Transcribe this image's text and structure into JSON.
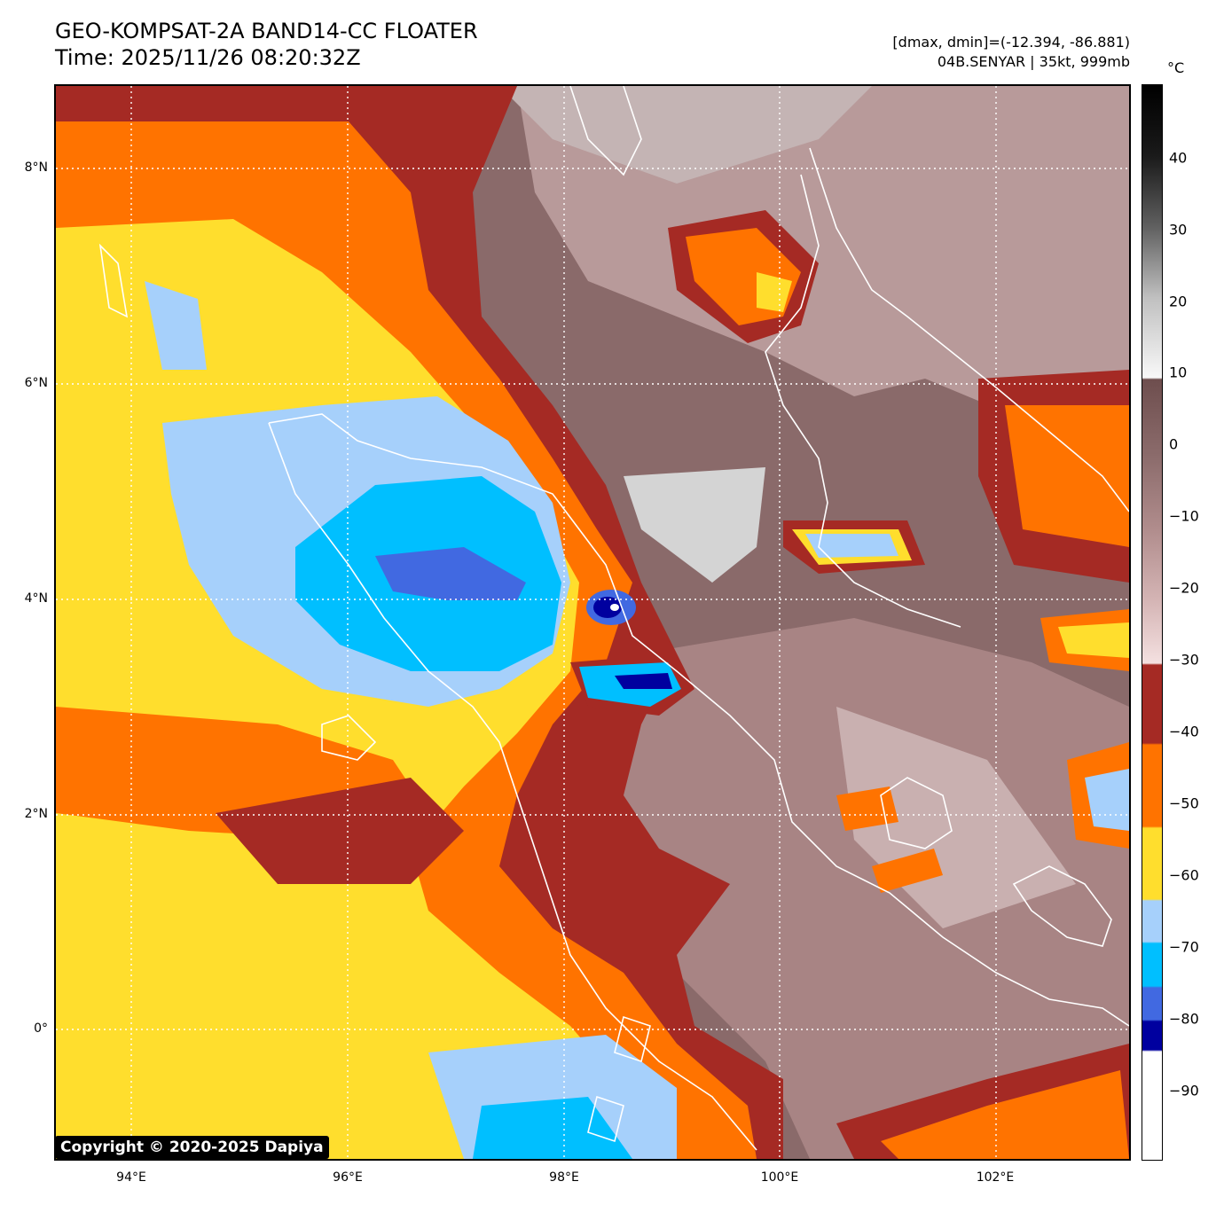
{
  "title": {
    "line1": "GEO-KOMPSAT-2A BAND14-CC FLOATER",
    "line2": "Time: 2025/11/26 08:20:32Z"
  },
  "info": {
    "line1": "[dmax, dmin]=(-12.394, -86.881)",
    "line2": "04B.SENYAR | 35kt, 999mb"
  },
  "copyright": "Copyright © 2020-2025 Dapiya",
  "lat_labels": [
    "8°N",
    "6°N",
    "4°N",
    "2°N",
    "0°"
  ],
  "lon_labels": [
    "94°E",
    "96°E",
    "98°E",
    "100°E",
    "102°E"
  ],
  "colorbar": {
    "unit": "°C",
    "ticks": [
      "40",
      "30",
      "20",
      "10",
      "0",
      "−10",
      "−20",
      "−30",
      "−40",
      "−50",
      "−60",
      "−70",
      "−80",
      "−90"
    ],
    "colors": {
      "very_cold": "#ffffff",
      "navy": "#00009f",
      "royal_blue": "#4169e1",
      "deep_sky": "#00bfff",
      "light_blue": "#a6d0fb",
      "gold": "#ffde2d",
      "orange": "#ff7300",
      "brown_red": "#a52a24",
      "warm_grey_brown": "#7a5a5a",
      "light_pink": "#f2dede",
      "grey_white": "#f5f5f5",
      "black": "#000000"
    }
  }
}
